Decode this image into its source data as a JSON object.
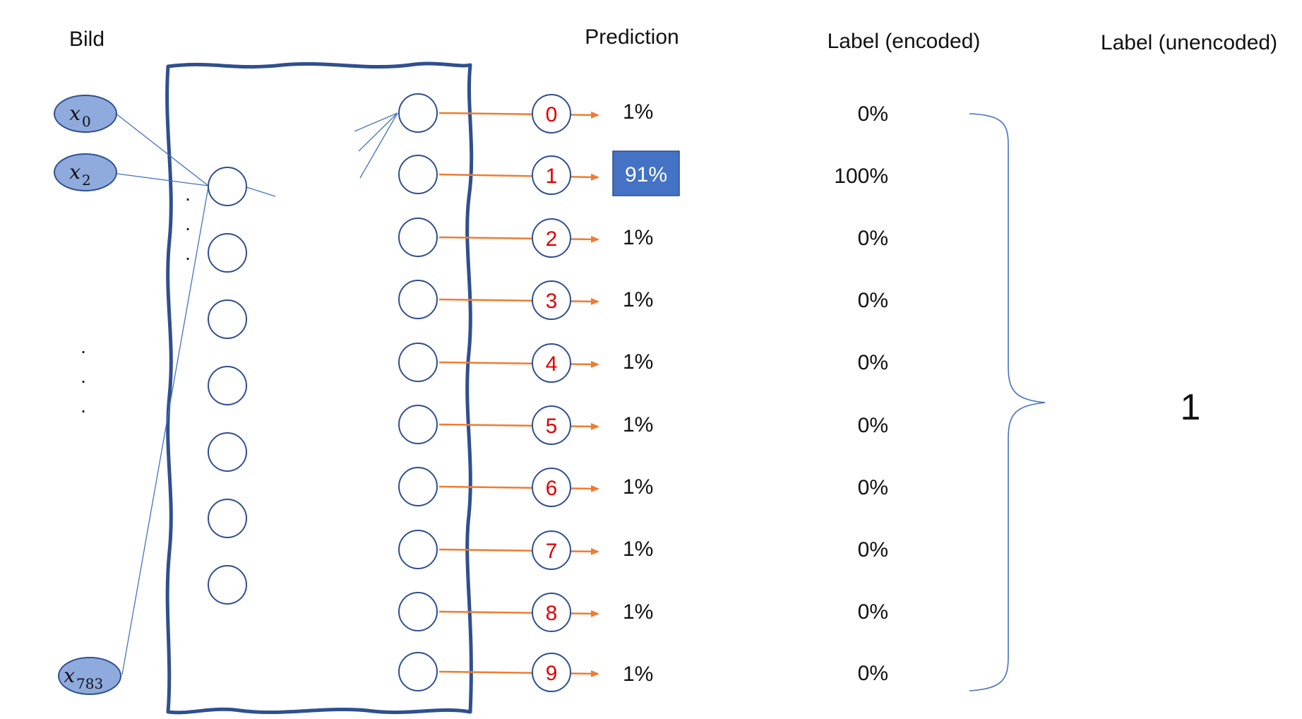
{
  "headers": {
    "image": "Bild",
    "prediction": "Prediction",
    "label_encoded": "Label (encoded)",
    "label_unencoded": "Label (unencoded)"
  },
  "inputs": [
    {
      "var": "x",
      "sub": "0"
    },
    {
      "var": "x",
      "sub": "2"
    },
    {
      "var": "x",
      "sub": "783"
    }
  ],
  "ellipsis": "·",
  "outputs": [
    {
      "digit": "0",
      "prediction": "1%",
      "label": "0%"
    },
    {
      "digit": "1",
      "prediction": "91%",
      "label": "100%",
      "highlight": true
    },
    {
      "digit": "2",
      "prediction": "1%",
      "label": "0%"
    },
    {
      "digit": "3",
      "prediction": "1%",
      "label": "0%"
    },
    {
      "digit": "4",
      "prediction": "1%",
      "label": "0%"
    },
    {
      "digit": "5",
      "prediction": "1%",
      "label": "0%"
    },
    {
      "digit": "6",
      "prediction": "1%",
      "label": "0%"
    },
    {
      "digit": "7",
      "prediction": "1%",
      "label": "0%"
    },
    {
      "digit": "8",
      "prediction": "1%",
      "label": "0%"
    },
    {
      "digit": "9",
      "prediction": "1%",
      "label": "0%"
    }
  ],
  "unencoded_label": "1",
  "colors": {
    "network_border": "#2f4f8f",
    "node_stroke": "#2f4f8f",
    "input_fill": "#8faadc",
    "connection": "#4472c4",
    "arrow": "#ed7d31",
    "digit": "#e00000",
    "highlight_fill": "#4472c4",
    "brace": "#4472c4"
  }
}
